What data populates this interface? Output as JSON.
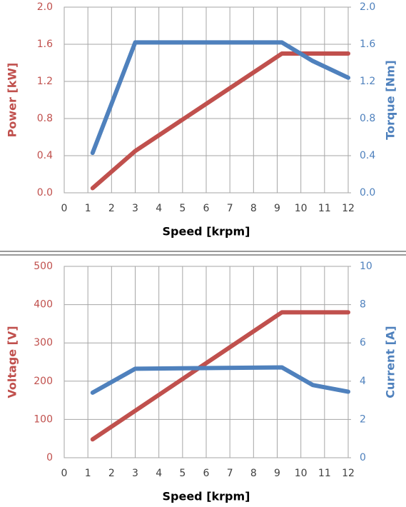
{
  "chart_data": [
    {
      "type": "line",
      "xlabel": "Speed [krpm]",
      "ylabel": "Power [kW]",
      "y2label": "Torque [Nm]",
      "xlim": [
        0,
        12
      ],
      "xticks": [
        0,
        1,
        2,
        3,
        4,
        5,
        6,
        7,
        8,
        9,
        10,
        11,
        12
      ],
      "ylim": [
        0,
        2
      ],
      "yticks": [
        {
          "value": 0,
          "label": "0.0"
        },
        0.4,
        0.8,
        1.2,
        1.6,
        {
          "value": 2,
          "label": "2.0"
        }
      ],
      "y2lim": [
        0,
        2
      ],
      "y2ticks": [
        {
          "value": 0,
          "label": "0.0"
        },
        0.4,
        0.8,
        1.2,
        1.6,
        {
          "value": 2,
          "label": "2.0"
        }
      ],
      "grid": true,
      "series": [
        {
          "name": "Power",
          "color": "#c0504d",
          "x": [
            1.2,
            3,
            9.2,
            12
          ],
          "values": [
            0.05,
            0.45,
            1.5,
            1.5
          ]
        },
        {
          "name": "Torque",
          "color": "#4f81bd",
          "axis": "y2",
          "x": [
            1.2,
            3,
            9.2,
            10.5,
            12
          ],
          "values": [
            0.43,
            1.62,
            1.62,
            1.42,
            1.24
          ]
        }
      ]
    },
    {
      "type": "line",
      "xlabel": "Speed [krpm]",
      "ylabel": "Voltage [V]",
      "y2label": "Current [A]",
      "xlim": [
        0,
        12
      ],
      "xticks": [
        0,
        1,
        2,
        3,
        4,
        5,
        6,
        7,
        8,
        9,
        10,
        11,
        12
      ],
      "ylim": [
        0,
        500
      ],
      "yticks": [
        0,
        100,
        200,
        300,
        400,
        500
      ],
      "y2lim": [
        0,
        10
      ],
      "y2ticks": [
        0,
        2,
        4,
        6,
        8,
        10
      ],
      "grid": true,
      "series": [
        {
          "name": "Voltage",
          "color": "#c0504d",
          "x": [
            1.2,
            9.2,
            12
          ],
          "values": [
            48,
            380,
            380
          ]
        },
        {
          "name": "Current",
          "color": "#4f81bd",
          "axis": "y2",
          "x": [
            1.2,
            3,
            9.2,
            10.5,
            12
          ],
          "values": [
            3.4,
            4.65,
            4.72,
            3.8,
            3.45
          ]
        }
      ]
    }
  ]
}
